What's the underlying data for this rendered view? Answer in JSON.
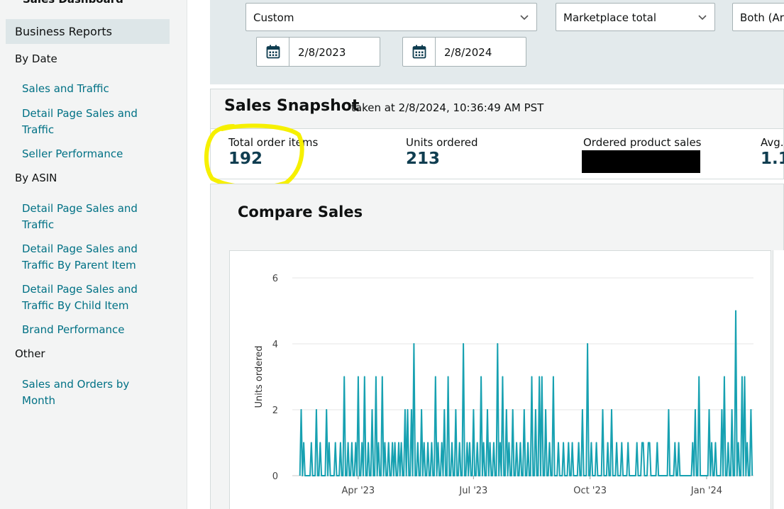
{
  "sidebar": {
    "top_item": "Sales Dashboard",
    "active_item": "Business Reports",
    "sections": [
      {
        "heading": "By Date",
        "items": [
          "Sales and Traffic",
          "Detail Page Sales and Traffic",
          "Seller Performance"
        ]
      },
      {
        "heading": "By ASIN",
        "items": [
          "Detail Page Sales and Traffic",
          "Detail Page Sales and Traffic By Parent Item",
          "Detail Page Sales and Traffic By Child Item",
          "Brand Performance"
        ]
      },
      {
        "heading": "Other",
        "items": [
          "Sales and Orders by Month"
        ]
      }
    ]
  },
  "filters": {
    "date_range": "Custom",
    "marketplace": "Marketplace total",
    "fulfillment": "Both (Ar",
    "start_date": "2/8/2023",
    "end_date": "2/8/2024"
  },
  "snapshot": {
    "title": "Sales Snapshot",
    "taken_at": "taken at 2/8/2024, 10:36:49 AM PST",
    "metrics": [
      {
        "label": "Total order items",
        "value": "192"
      },
      {
        "label": "Units ordered",
        "value": "213"
      },
      {
        "label": "Ordered product sales",
        "value": ""
      },
      {
        "label": "Avg.",
        "value": "1.1"
      }
    ]
  },
  "compare": {
    "title": "Compare Sales"
  },
  "colors": {
    "line": "#17a1b1",
    "link": "#007185",
    "highlight": "#f6f000"
  },
  "chart_data": {
    "type": "line",
    "ylabel": "Units ordered",
    "ylim": [
      0,
      6
    ],
    "yticks": [
      "0",
      "2",
      "4",
      "6"
    ],
    "xticks": [
      "Apr '23",
      "Jul '23",
      "Oct '23",
      "Jan '24"
    ],
    "xtick_days": [
      52,
      143,
      235,
      327
    ],
    "x_days": [
      0,
      364
    ],
    "series": [
      {
        "values_by_day": "sparse",
        "points": [
          [
            6,
            0
          ],
          [
            7,
            2
          ],
          [
            8,
            0
          ],
          [
            9,
            1
          ],
          [
            10,
            0
          ],
          [
            15,
            1
          ],
          [
            16,
            0
          ],
          [
            19,
            2
          ],
          [
            20,
            0
          ],
          [
            22,
            1
          ],
          [
            23,
            0
          ],
          [
            27,
            2
          ],
          [
            28,
            0
          ],
          [
            29,
            1
          ],
          [
            30,
            0
          ],
          [
            34,
            1
          ],
          [
            35,
            0
          ],
          [
            38,
            1
          ],
          [
            39,
            0
          ],
          [
            41,
            3
          ],
          [
            42,
            0
          ],
          [
            44,
            1
          ],
          [
            47,
            1
          ],
          [
            48,
            0
          ],
          [
            50,
            1
          ],
          [
            51,
            0
          ],
          [
            52,
            3
          ],
          [
            53,
            0
          ],
          [
            55,
            1
          ],
          [
            56,
            0
          ],
          [
            57,
            3
          ],
          [
            58,
            0
          ],
          [
            60,
            1
          ],
          [
            61,
            0
          ],
          [
            63,
            2
          ],
          [
            64,
            0
          ],
          [
            66,
            3
          ],
          [
            67,
            0
          ],
          [
            68,
            1
          ],
          [
            69,
            0
          ],
          [
            71,
            3
          ],
          [
            72,
            0
          ],
          [
            73,
            1
          ],
          [
            74,
            0
          ],
          [
            76,
            1
          ],
          [
            77,
            0
          ],
          [
            79,
            1
          ],
          [
            80,
            0
          ],
          [
            81,
            1
          ],
          [
            82,
            0
          ],
          [
            84,
            1
          ],
          [
            85,
            0
          ],
          [
            86,
            1
          ],
          [
            87,
            0
          ],
          [
            89,
            2
          ],
          [
            90,
            0
          ],
          [
            91,
            2
          ],
          [
            92,
            0
          ],
          [
            94,
            2
          ],
          [
            95,
            0
          ],
          [
            96,
            4
          ],
          [
            97,
            0
          ],
          [
            99,
            1
          ],
          [
            100,
            0
          ],
          [
            102,
            2
          ],
          [
            103,
            0
          ],
          [
            104,
            1
          ],
          [
            105,
            0
          ],
          [
            107,
            1
          ],
          [
            108,
            0
          ],
          [
            110,
            1
          ],
          [
            111,
            0
          ],
          [
            113,
            3
          ],
          [
            114,
            0
          ],
          [
            115,
            1
          ],
          [
            116,
            0
          ],
          [
            118,
            1
          ],
          [
            119,
            0
          ],
          [
            120,
            2
          ],
          [
            121,
            0
          ],
          [
            123,
            3
          ],
          [
            124,
            0
          ],
          [
            126,
            1
          ],
          [
            127,
            0
          ],
          [
            129,
            2
          ],
          [
            130,
            0
          ],
          [
            132,
            1
          ],
          [
            133,
            0
          ],
          [
            135,
            4
          ],
          [
            136,
            0
          ],
          [
            138,
            1
          ],
          [
            139,
            0
          ],
          [
            140,
            1
          ],
          [
            141,
            0
          ],
          [
            143,
            2
          ],
          [
            144,
            0
          ],
          [
            146,
            1
          ],
          [
            147,
            0
          ],
          [
            149,
            3
          ],
          [
            150,
            0
          ],
          [
            151,
            1
          ],
          [
            152,
            0
          ],
          [
            154,
            2
          ],
          [
            155,
            0
          ],
          [
            156,
            1
          ],
          [
            157,
            0
          ],
          [
            159,
            1
          ],
          [
            160,
            0
          ],
          [
            162,
            4
          ],
          [
            163,
            0
          ],
          [
            164,
            1
          ],
          [
            165,
            0
          ],
          [
            166,
            3
          ],
          [
            167,
            0
          ],
          [
            169,
            2
          ],
          [
            170,
            0
          ],
          [
            171,
            1
          ],
          [
            172,
            0
          ],
          [
            174,
            2
          ],
          [
            175,
            0
          ],
          [
            177,
            1
          ],
          [
            178,
            0
          ],
          [
            180,
            1
          ],
          [
            181,
            0
          ],
          [
            183,
            2
          ],
          [
            184,
            0
          ],
          [
            186,
            1
          ],
          [
            187,
            0
          ],
          [
            189,
            3
          ],
          [
            190,
            0
          ],
          [
            192,
            2
          ],
          [
            193,
            0
          ],
          [
            195,
            3
          ],
          [
            196,
            0
          ],
          [
            197,
            3
          ],
          [
            198,
            0
          ],
          [
            200,
            2
          ],
          [
            201,
            0
          ],
          [
            203,
            1
          ],
          [
            204,
            0
          ],
          [
            206,
            3
          ],
          [
            207,
            0
          ],
          [
            210,
            1
          ],
          [
            211,
            0
          ],
          [
            214,
            1
          ],
          [
            215,
            0
          ],
          [
            218,
            1
          ],
          [
            219,
            0
          ],
          [
            221,
            1
          ],
          [
            222,
            0
          ],
          [
            226,
            1
          ],
          [
            227,
            0
          ],
          [
            229,
            2
          ],
          [
            230,
            0
          ],
          [
            233,
            4
          ],
          [
            234,
            0
          ],
          [
            236,
            1
          ],
          [
            237,
            0
          ],
          [
            240,
            1
          ],
          [
            241,
            0
          ],
          [
            245,
            2
          ],
          [
            246,
            0
          ],
          [
            249,
            1
          ],
          [
            250,
            0
          ],
          [
            252,
            2
          ],
          [
            253,
            0
          ],
          [
            256,
            1
          ],
          [
            257,
            0
          ],
          [
            260,
            1
          ],
          [
            261,
            0
          ],
          [
            265,
            1
          ],
          [
            266,
            0
          ],
          [
            272,
            1
          ],
          [
            273,
            0
          ],
          [
            276,
            1
          ],
          [
            277,
            1
          ],
          [
            278,
            0
          ],
          [
            281,
            1
          ],
          [
            282,
            1
          ],
          [
            283,
            0
          ],
          [
            288,
            1
          ],
          [
            289,
            0
          ],
          [
            297,
            2
          ],
          [
            298,
            0
          ],
          [
            302,
            1
          ],
          [
            303,
            0
          ],
          [
            305,
            1
          ],
          [
            306,
            0
          ],
          [
            316,
            1
          ],
          [
            317,
            0
          ],
          [
            318,
            2
          ],
          [
            319,
            0
          ],
          [
            321,
            3
          ],
          [
            322,
            0
          ],
          [
            329,
            2
          ],
          [
            330,
            0
          ],
          [
            331,
            1
          ],
          [
            332,
            0
          ],
          [
            334,
            1
          ],
          [
            335,
            0
          ],
          [
            339,
            2
          ],
          [
            340,
            0
          ],
          [
            341,
            3
          ],
          [
            342,
            0
          ],
          [
            344,
            1
          ],
          [
            345,
            0
          ],
          [
            347,
            2
          ],
          [
            348,
            0
          ],
          [
            350,
            5
          ],
          [
            351,
            0
          ],
          [
            352,
            1
          ],
          [
            353,
            0
          ],
          [
            355,
            3
          ],
          [
            356,
            0
          ],
          [
            357,
            3
          ],
          [
            358,
            0
          ],
          [
            359,
            1
          ],
          [
            360,
            0
          ],
          [
            362,
            2
          ],
          [
            363,
            0
          ]
        ]
      }
    ]
  }
}
